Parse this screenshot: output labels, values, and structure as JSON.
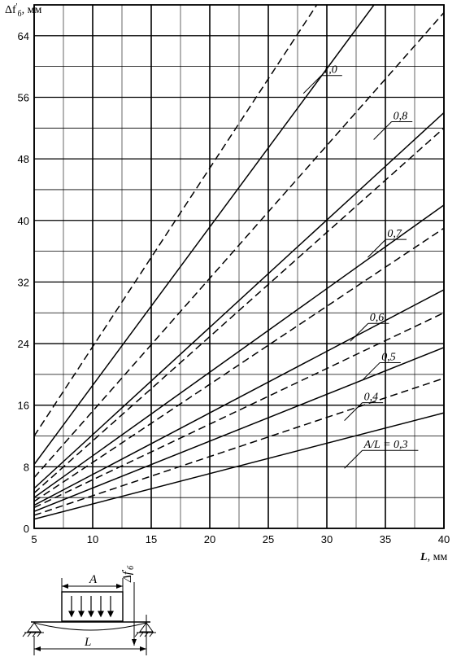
{
  "chart_data": {
    "type": "line",
    "ylabel_main": "Δf",
    "ylabel_sup": "'",
    "ylabel_sub": "б",
    "ylabel_unit": ", мм",
    "xlabel_var": "L",
    "xlabel_unit": ", мм",
    "xlim": [
      5,
      40
    ],
    "ylim": [
      0,
      68
    ],
    "xticks": [
      5,
      10,
      15,
      20,
      25,
      30,
      35,
      40
    ],
    "yticks": [
      0,
      8,
      16,
      24,
      32,
      40,
      48,
      56,
      64
    ],
    "grid": true,
    "series": [
      {
        "name": "A/L = 0,3",
        "style": "solid",
        "x": [
          5,
          40
        ],
        "y": [
          1.2,
          15.0
        ]
      },
      {
        "name": "A/L = 0,3",
        "style": "dashed",
        "x": [
          5,
          40
        ],
        "y": [
          1.7,
          19.5
        ]
      },
      {
        "name": "0,4",
        "style": "solid",
        "x": [
          5,
          40
        ],
        "y": [
          2.2,
          23.5
        ]
      },
      {
        "name": "0,4",
        "style": "dashed",
        "x": [
          5,
          40
        ],
        "y": [
          2.7,
          28.0
        ]
      },
      {
        "name": "0,5",
        "style": "solid",
        "x": [
          5,
          40
        ],
        "y": [
          3.0,
          31.0
        ]
      },
      {
        "name": "0,5",
        "style": "dashed",
        "x": [
          5,
          40
        ],
        "y": [
          3.5,
          39.0
        ]
      },
      {
        "name": "0,6",
        "style": "solid",
        "x": [
          5,
          40
        ],
        "y": [
          4.0,
          42.0
        ]
      },
      {
        "name": "0,6",
        "style": "dashed",
        "x": [
          5,
          40
        ],
        "y": [
          4.6,
          52.0
        ]
      },
      {
        "name": "0,7",
        "style": "solid",
        "x": [
          5,
          40
        ],
        "y": [
          5.2,
          54.0
        ]
      },
      {
        "name": "0,7",
        "style": "dashed",
        "x": [
          5,
          40
        ],
        "y": [
          6.6,
          67.0
        ]
      },
      {
        "name": "0,8",
        "style": "solid",
        "x": [
          5,
          35
        ],
        "y": [
          8.3,
          70.0
        ]
      },
      {
        "name": "1,0",
        "style": "dashed",
        "x": [
          5,
          30
        ],
        "y": [
          12.0,
          70.0
        ]
      }
    ],
    "annotations": [
      {
        "text": "1,0",
        "at_x": 28.0,
        "at_y": 56.5
      },
      {
        "text": "0,8",
        "at_x": 34.0,
        "at_y": 50.5
      },
      {
        "text": "0,7",
        "at_x": 33.5,
        "at_y": 35.2
      },
      {
        "text": "0,6",
        "at_x": 32.0,
        "at_y": 24.3
      },
      {
        "text": "0,5",
        "at_x": 33.0,
        "at_y": 19.2
      },
      {
        "text": "0,4",
        "at_x": 31.5,
        "at_y": 14.0
      },
      {
        "text": "A/L = 0,3",
        "at_x": 31.5,
        "at_y": 7.8
      }
    ]
  },
  "diagram": {
    "dim_a": "A",
    "dim_l": "L",
    "deflection_main": "Δf",
    "deflection_sup": "'",
    "deflection_sub": "б"
  }
}
